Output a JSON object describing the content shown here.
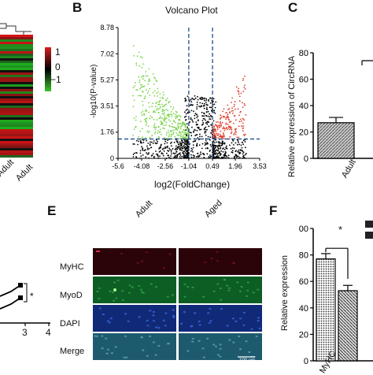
{
  "panels": {
    "B": "B",
    "C": "C",
    "E": "E",
    "F": "F"
  },
  "heatmap": {
    "x_labels": [
      "Adult",
      "Adult"
    ],
    "colorbar_ticks": [
      "1",
      "0",
      "−1"
    ],
    "colors": {
      "high": "#d42020",
      "mid": "#000000",
      "low": "#3fbf2f"
    }
  },
  "volcano": {
    "title": "Volcano Plot",
    "xlabel": "log2(FoldChange)",
    "ylabel": "-log10(P-value)",
    "x_ticks": [
      "-5.6",
      "-4.08",
      "-2.56",
      "-1.04",
      "0.49",
      "1.96",
      "3.53"
    ],
    "y_ticks": [
      "0",
      "1.76",
      "3.51",
      "5.27",
      "7.02",
      "8.78"
    ],
    "colors": {
      "down": "#7ad44a",
      "ns": "#000000",
      "up": "#e0402e",
      "threshold": "#1f4e8c"
    }
  },
  "panel_c": {
    "ylabel": "Relative expression of CircRNA",
    "y_ticks": [
      "0",
      "20",
      "40",
      "60",
      "80"
    ],
    "x_labels": [
      "Adult"
    ]
  },
  "panel_d": {
    "x_ticks": [
      "3",
      "4"
    ],
    "sig": "*"
  },
  "panel_e": {
    "columns": [
      "Adult",
      "Aged"
    ],
    "rows": [
      "MyHC",
      "MyoD",
      "DAPI",
      "Merge"
    ],
    "scale_bar": "100 um",
    "row_colors": [
      "#2a0408",
      "#0d5e24",
      "#102a78",
      "#1e5a6e"
    ]
  },
  "panel_f": {
    "ylabel": "Relative expression",
    "y_ticks": [
      "0",
      "20",
      "40",
      "60",
      "80",
      "100"
    ],
    "x_labels": [
      "MyHC"
    ],
    "sig": "*"
  },
  "chart_data": [
    {
      "type": "scatter",
      "title": "Volcano Plot",
      "xlabel": "log2(FoldChange)",
      "ylabel": "-log10(P-value)",
      "xlim": [
        -5.6,
        3.53
      ],
      "ylim": [
        0,
        8.78
      ],
      "x_ticks": [
        -5.6,
        -4.08,
        -2.56,
        -1.04,
        0.49,
        1.96,
        3.53
      ],
      "y_ticks": [
        0,
        1.76,
        3.51,
        5.27,
        7.02,
        8.78
      ],
      "threshold_x": [
        -1.04,
        0.49
      ],
      "threshold_y": 1.3
    },
    {
      "type": "bar",
      "ylabel": "Relative expression of CircRNA",
      "ylim": [
        0,
        80
      ],
      "categories": [
        "Adult"
      ],
      "values": [
        27
      ],
      "errors": [
        4
      ]
    },
    {
      "type": "bar",
      "ylabel": "Relative expression",
      "ylim": [
        0,
        100
      ],
      "categories": [
        "MyHC"
      ],
      "series": [
        {
          "values": [
            77
          ],
          "errors": [
            4
          ]
        },
        {
          "values": [
            53
          ],
          "errors": [
            4
          ]
        }
      ]
    }
  ]
}
